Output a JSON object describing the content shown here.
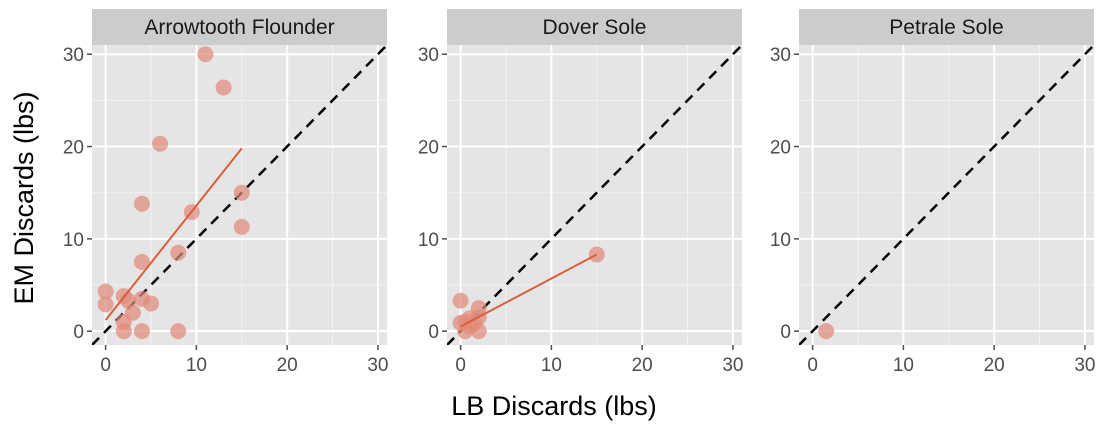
{
  "chart_data": {
    "type": "scatter",
    "xlabel": "LB Discards (lbs)",
    "ylabel": "EM Discards (lbs)",
    "xlim": [
      -1.5,
      31
    ],
    "ylim": [
      -1.5,
      31
    ],
    "x_ticks": [
      0,
      10,
      20,
      30
    ],
    "y_ticks": [
      0,
      10,
      20,
      30
    ],
    "grid": true,
    "reference_line": {
      "slope": 1,
      "intercept": 0,
      "style": "dashed",
      "color": "#000000"
    },
    "colors": {
      "panel_bg": "#e5e5e5",
      "strip_bg": "#cccccc",
      "grid_major": "#ffffff",
      "grid_minor": "#f2f2f2",
      "points": "#e08a7a",
      "fit_line": "#d95f3b"
    },
    "panels": [
      {
        "title": "Arrowtooth Flounder",
        "points": [
          {
            "x": 0,
            "y": 4.3
          },
          {
            "x": 0,
            "y": 2.9
          },
          {
            "x": 2,
            "y": 3.8
          },
          {
            "x": 2.5,
            "y": 3.3
          },
          {
            "x": 2,
            "y": 1.0
          },
          {
            "x": 3,
            "y": 2.0
          },
          {
            "x": 2,
            "y": 0
          },
          {
            "x": 4,
            "y": 0
          },
          {
            "x": 4,
            "y": 3.5
          },
          {
            "x": 5,
            "y": 3.0
          },
          {
            "x": 4,
            "y": 7.5
          },
          {
            "x": 4,
            "y": 13.8
          },
          {
            "x": 8,
            "y": 8.5
          },
          {
            "x": 8,
            "y": 0
          },
          {
            "x": 6,
            "y": 20.3
          },
          {
            "x": 9.5,
            "y": 12.9
          },
          {
            "x": 11,
            "y": 30
          },
          {
            "x": 13,
            "y": 26.4
          },
          {
            "x": 15,
            "y": 15
          },
          {
            "x": 15,
            "y": 11.3
          }
        ],
        "fit_line": {
          "x": [
            0,
            15
          ],
          "y": [
            1.2,
            19.8
          ]
        }
      },
      {
        "title": "Dover Sole",
        "points": [
          {
            "x": 0,
            "y": 3.3
          },
          {
            "x": 0,
            "y": 0.9
          },
          {
            "x": 0.5,
            "y": 1.0
          },
          {
            "x": 1,
            "y": 0.5
          },
          {
            "x": 1.5,
            "y": 0.8
          },
          {
            "x": 1,
            "y": 1.4
          },
          {
            "x": 2,
            "y": 2.5
          },
          {
            "x": 2,
            "y": 1.5
          },
          {
            "x": 2,
            "y": 0
          },
          {
            "x": 0.5,
            "y": 0
          },
          {
            "x": 15,
            "y": 8.3
          }
        ],
        "fit_line": {
          "x": [
            0,
            15
          ],
          "y": [
            0.5,
            8.3
          ]
        }
      },
      {
        "title": "Petrale Sole",
        "points": [
          {
            "x": 1.5,
            "y": 0
          }
        ],
        "fit_line": null
      }
    ]
  }
}
